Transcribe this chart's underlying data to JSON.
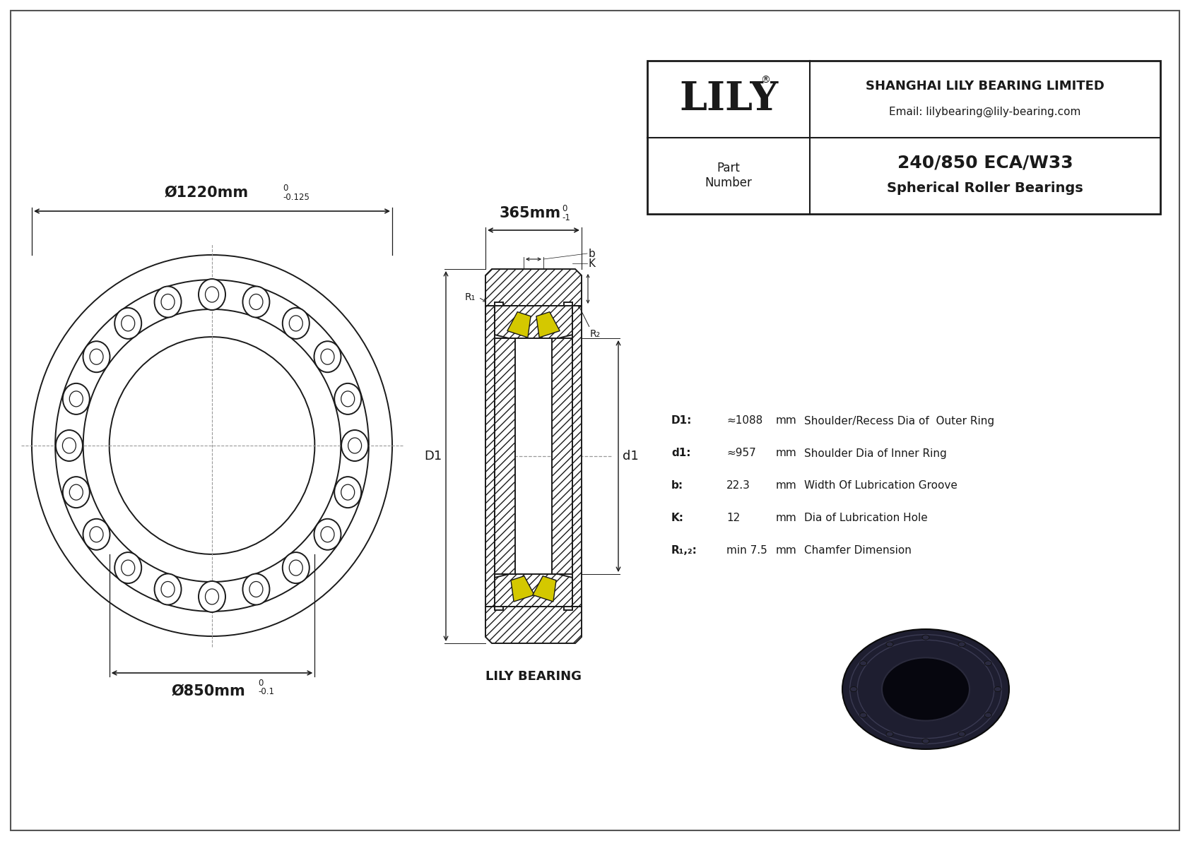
{
  "bg_color": "#ffffff",
  "line_color": "#1a1a1a",
  "yellow_color": "#d4c800",
  "gray_dash": "#999999",
  "outer_diameter_label": "Ø1220mm",
  "outer_tol_hi": "0",
  "outer_tol_lo": "-0.125",
  "inner_diameter_label": "Ø850mm",
  "inner_tol_hi": "0",
  "inner_tol_lo": "-0.1",
  "width_label": "365mm",
  "width_tol_hi": "0",
  "width_tol_lo": "-1",
  "D1_label": "D1",
  "d1_label": "d1",
  "b_label": "b",
  "K_label": "K",
  "R1_label": "R₁",
  "R2_label": "R₂",
  "specs": [
    [
      "D1:",
      "≈1088",
      "mm",
      "Shoulder/Recess Dia of  Outer Ring"
    ],
    [
      "d1:",
      "≈957",
      "mm",
      "Shoulder Dia of Inner Ring"
    ],
    [
      "b:",
      "22.3",
      "mm",
      "Width Of Lubrication Groove"
    ],
    [
      "K:",
      "12",
      "mm",
      "Dia of Lubrication Hole"
    ],
    [
      "R₁,₂:",
      "min 7.5",
      "mm",
      "Chamfer Dimension"
    ]
  ],
  "company": "SHANGHAI LILY BEARING LIMITED",
  "email": "Email: lilybearing@lily-bearing.com",
  "part_label": "Part\nNumber",
  "part_number": "240/850 ECA/W33",
  "part_type": "Spherical Roller Bearings",
  "lily_text": "LILY",
  "lily_bearing_text": "LILY BEARING"
}
